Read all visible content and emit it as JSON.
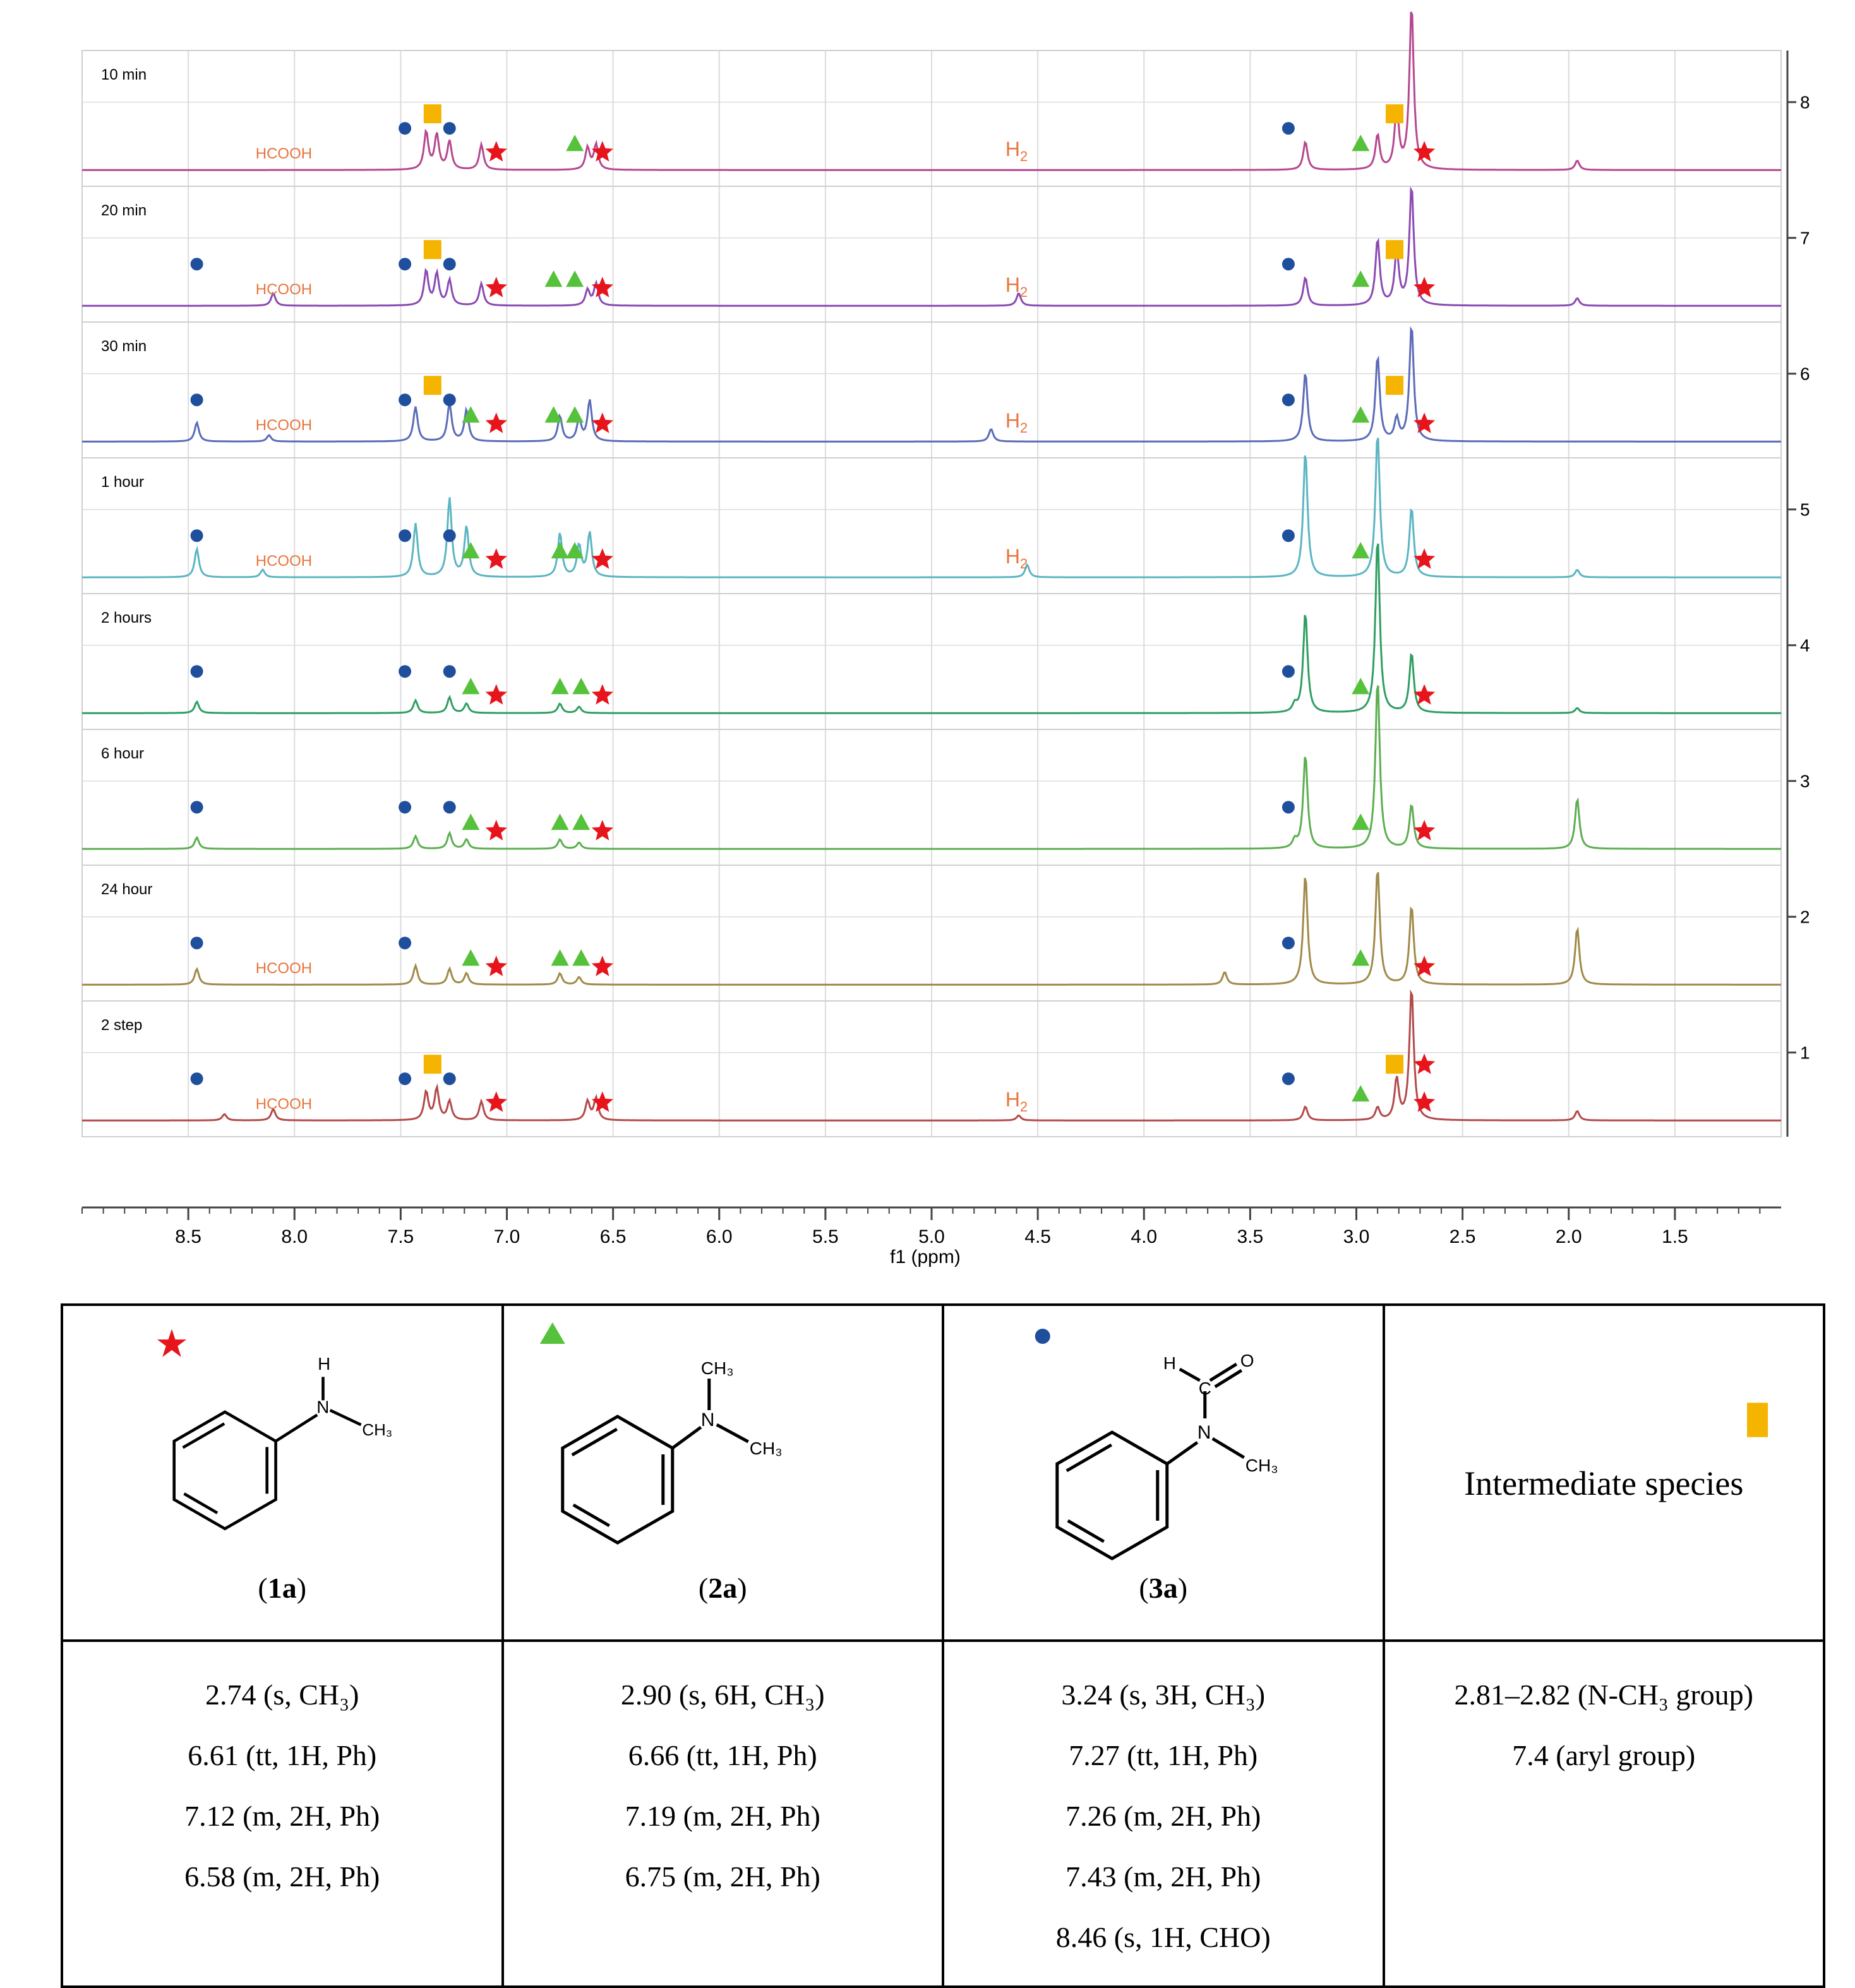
{
  "chart_data": {
    "type": "nmr-stack",
    "xlabel": "f1 (ppm)",
    "xlim": [
      9.0,
      1.0
    ],
    "x_ticks": [
      "8.5",
      "8.0",
      "7.5",
      "7.0",
      "6.5",
      "6.0",
      "5.5",
      "5.0",
      "4.5",
      "4.0",
      "3.5",
      "3.0",
      "2.5",
      "2.0",
      "1.5"
    ],
    "y_ticks": [
      "8",
      "7",
      "6",
      "5",
      "4",
      "3",
      "2",
      "1"
    ],
    "traces": [
      {
        "label": "10 min",
        "color": "#b5478f",
        "markers": {
          "star": [
            7.05,
            6.55,
            2.68
          ],
          "tri": [
            6.68,
            2.98
          ],
          "dot": [
            7.48,
            7.27,
            3.32
          ],
          "sq": [
            7.35,
            2.82
          ]
        },
        "labels": [
          "HCOOH",
          "H2"
        ],
        "peaks": [
          [
            7.38,
            60
          ],
          [
            7.33,
            55
          ],
          [
            7.27,
            45
          ],
          [
            7.12,
            40
          ],
          [
            6.62,
            35
          ],
          [
            6.58,
            40
          ],
          [
            3.24,
            45
          ],
          [
            2.9,
            55
          ],
          [
            2.81,
            95
          ],
          [
            2.74,
            260
          ],
          [
            1.96,
            15
          ]
        ]
      },
      {
        "label": "20 min",
        "color": "#8a4ab2",
        "markers": {
          "star": [
            7.05,
            6.55,
            2.68
          ],
          "tri": [
            6.78,
            6.68,
            2.98
          ],
          "dot": [
            8.46,
            7.48,
            7.27,
            3.32
          ],
          "sq": [
            7.35,
            2.82
          ]
        },
        "labels": [
          "HCOOH",
          "H2"
        ],
        "peaks": [
          [
            8.1,
            20
          ],
          [
            7.38,
            55
          ],
          [
            7.33,
            50
          ],
          [
            7.27,
            40
          ],
          [
            7.12,
            35
          ],
          [
            6.62,
            25
          ],
          [
            6.58,
            35
          ],
          [
            4.59,
            20
          ],
          [
            3.24,
            45
          ],
          [
            2.9,
            105
          ],
          [
            2.81,
            85
          ],
          [
            2.74,
            190
          ],
          [
            1.96,
            12
          ]
        ]
      },
      {
        "label": "30 min",
        "color": "#5b6bb8",
        "markers": {
          "star": [
            7.05,
            6.55,
            2.68
          ],
          "tri": [
            7.17,
            6.78,
            6.68,
            2.98
          ],
          "dot": [
            8.46,
            7.48,
            7.27,
            3.32
          ],
          "sq": [
            7.35,
            2.82
          ]
        },
        "labels": [
          "HCOOH",
          "H2"
        ],
        "peaks": [
          [
            8.46,
            30
          ],
          [
            8.12,
            10
          ],
          [
            7.43,
            55
          ],
          [
            7.27,
            60
          ],
          [
            7.19,
            50
          ],
          [
            6.75,
            40
          ],
          [
            6.66,
            35
          ],
          [
            6.61,
            65
          ],
          [
            4.72,
            20
          ],
          [
            3.24,
            110
          ],
          [
            2.9,
            135
          ],
          [
            2.81,
            35
          ],
          [
            2.74,
            185
          ]
        ]
      },
      {
        "label": "1 hour",
        "color": "#5bb5c2",
        "markers": {
          "star": [
            7.05,
            6.55,
            2.68
          ],
          "tri": [
            7.17,
            6.75,
            6.68,
            2.98
          ],
          "dot": [
            8.46,
            7.48,
            7.27,
            3.32
          ],
          "sq": []
        },
        "labels": [
          "HCOOH",
          "H2"
        ],
        "peaks": [
          [
            8.46,
            45
          ],
          [
            8.15,
            12
          ],
          [
            7.43,
            85
          ],
          [
            7.27,
            125
          ],
          [
            7.19,
            80
          ],
          [
            6.75,
            70
          ],
          [
            6.66,
            50
          ],
          [
            6.61,
            70
          ],
          [
            4.55,
            20
          ],
          [
            3.24,
            200
          ],
          [
            2.9,
            230
          ],
          [
            2.74,
            110
          ],
          [
            1.96,
            12
          ]
        ]
      },
      {
        "label": "2 hours",
        "color": "#2f9e62",
        "markers": {
          "star": [
            7.05,
            6.55,
            2.68
          ],
          "tri": [
            7.17,
            6.75,
            6.65,
            2.98
          ],
          "dot": [
            8.46,
            7.48,
            7.27,
            3.32
          ],
          "sq": []
        },
        "labels": [],
        "peaks": [
          [
            8.46,
            18
          ],
          [
            7.43,
            20
          ],
          [
            7.27,
            25
          ],
          [
            7.19,
            15
          ],
          [
            6.75,
            15
          ],
          [
            6.66,
            10
          ],
          [
            3.29,
            12
          ],
          [
            3.24,
            160
          ],
          [
            2.9,
            280
          ],
          [
            2.74,
            95
          ],
          [
            1.96,
            8
          ]
        ]
      },
      {
        "label": "6 hour",
        "color": "#5cae50",
        "markers": {
          "star": [
            7.05,
            6.55,
            2.68
          ],
          "tri": [
            7.17,
            6.75,
            6.65,
            2.98
          ],
          "dot": [
            8.46,
            7.48,
            7.27,
            3.32
          ],
          "sq": []
        },
        "labels": [],
        "peaks": [
          [
            8.46,
            18
          ],
          [
            7.43,
            20
          ],
          [
            7.27,
            25
          ],
          [
            7.19,
            15
          ],
          [
            6.75,
            15
          ],
          [
            6.66,
            10
          ],
          [
            3.29,
            12
          ],
          [
            3.24,
            150
          ],
          [
            2.9,
            270
          ],
          [
            2.74,
            70
          ],
          [
            1.96,
            80
          ]
        ]
      },
      {
        "label": "24 hour",
        "color": "#a08a4a",
        "markers": {
          "star": [
            7.05,
            6.55,
            2.68
          ],
          "tri": [
            7.17,
            6.75,
            6.65,
            2.98
          ],
          "dot": [
            8.46,
            7.48,
            3.32
          ],
          "sq": []
        },
        "labels": [
          "HCOOH"
        ],
        "peaks": [
          [
            8.46,
            25
          ],
          [
            7.43,
            30
          ],
          [
            7.27,
            25
          ],
          [
            7.19,
            18
          ],
          [
            6.75,
            18
          ],
          [
            6.66,
            12
          ],
          [
            3.62,
            20
          ],
          [
            3.24,
            175
          ],
          [
            2.9,
            185
          ],
          [
            2.74,
            125
          ],
          [
            1.96,
            90
          ]
        ]
      },
      {
        "label": "2 step",
        "color": "#b34a4a",
        "markers": {
          "star": [
            7.05,
            6.55,
            2.68,
            2.68
          ],
          "tri": [
            2.98
          ],
          "dot": [
            8.46,
            7.48,
            7.27,
            3.32
          ],
          "sq": [
            7.35,
            2.82
          ]
        },
        "labels": [
          "HCOOH",
          "H2"
        ],
        "peaks": [
          [
            8.33,
            10
          ],
          [
            8.1,
            18
          ],
          [
            7.38,
            45
          ],
          [
            7.33,
            50
          ],
          [
            7.27,
            30
          ],
          [
            7.12,
            30
          ],
          [
            6.62,
            30
          ],
          [
            6.58,
            35
          ],
          [
            4.59,
            8
          ],
          [
            3.24,
            22
          ],
          [
            2.9,
            20
          ],
          [
            2.81,
            65
          ],
          [
            2.74,
            210
          ],
          [
            1.96,
            15
          ]
        ]
      }
    ],
    "peak_labels": {
      "hcooh": "HCOOH",
      "h2_base": "H",
      "h2_sub": "2"
    }
  },
  "legend_table": {
    "columns": [
      {
        "label": "1a",
        "marker": "star",
        "shifts": [
          "2.74 (s, CH₃)",
          "6.61 (tt, 1H, Ph)",
          "7.12 (m, 2H, Ph)",
          "6.58 (m, 2H, Ph)"
        ]
      },
      {
        "label": "2a",
        "marker": "tri",
        "shifts": [
          "2.90 (s, 6H, CH₃)",
          "6.66 (tt, 1H, Ph)",
          "7.19 (m, 2H, Ph)",
          "6.75 (m, 2H, Ph)"
        ]
      },
      {
        "label": "3a",
        "marker": "dot",
        "shifts": [
          "3.24 (s, 3H, CH₃)",
          "7.27 (tt, 1H, Ph)",
          "7.26 (m, 2H, Ph)",
          "7.43 (m, 2H, Ph)",
          "8.46 (s, 1H, CHO)"
        ]
      },
      {
        "label": "Intermediate species",
        "marker": "sq",
        "shifts": [
          "2.81–2.82 (N-CH₃ group)",
          "7.4 (aryl group)"
        ]
      }
    ],
    "atoms": {
      "H": "H",
      "N": "N",
      "CH3": "CH₃",
      "C": "C",
      "O": "O"
    }
  },
  "colors": {
    "star": "#e8141c",
    "tri": "#56c13a",
    "dot": "#1f4e9c",
    "sq": "#f4b400",
    "label": "#e8743c",
    "grid": "#dcdcdc"
  }
}
